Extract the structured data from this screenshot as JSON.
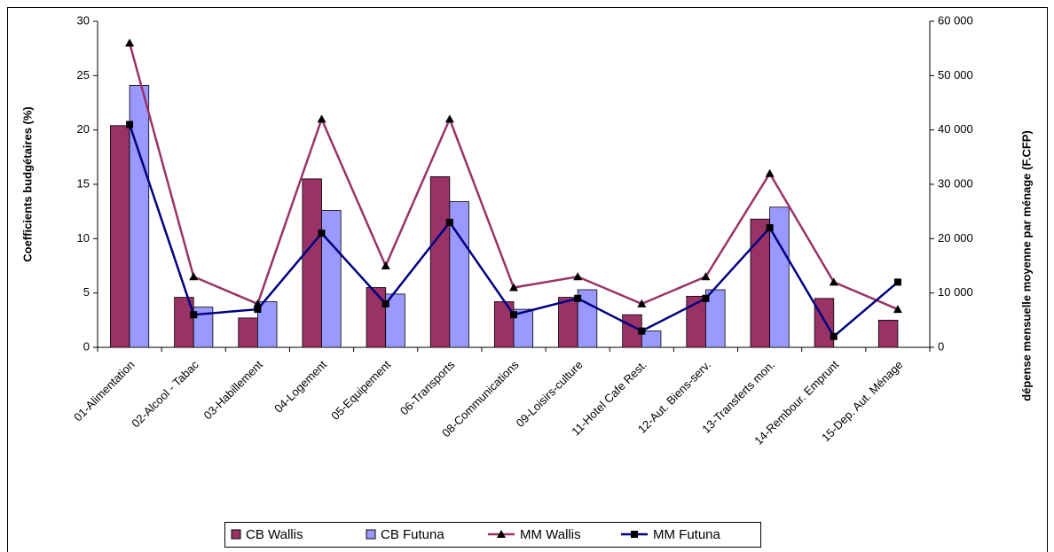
{
  "chart_data": {
    "type": "bar",
    "categories": [
      "01-Alimentation",
      "02-Alcool - Tabac",
      "03-Habillement",
      "04-Logement",
      "05-Equipement",
      "06-Transports",
      "08-Communications",
      "09-Loisirs-culture",
      "11-Hotel Cafe Rest.",
      "12-Aut. Biens-serv.",
      "13-Transferts mon.",
      "14-Rembour. Emprunt",
      "15-Dep. Aut. Ménage"
    ],
    "y_label": "Coefficients budgétaires (%)",
    "y2_label": "dépense mensuelle moyenne par ménage (F.CFP)",
    "ylim": [
      0,
      30
    ],
    "yticks": [
      0,
      5,
      10,
      15,
      20,
      25,
      30
    ],
    "y2lim": [
      0,
      60000
    ],
    "y2ticks": [
      0,
      {
        "value": 10000,
        "label": "10 000"
      },
      {
        "value": 20000,
        "label": "20 000"
      },
      {
        "value": 30000,
        "label": "30 000"
      },
      {
        "value": 40000,
        "label": "40 000"
      },
      {
        "value": 50000,
        "label": "50 000"
      },
      {
        "value": 60000,
        "label": "60 000"
      }
    ],
    "legend": "bottom",
    "series": [
      {
        "name": "CB Wallis",
        "type": "bar",
        "color": "#993366",
        "values": [
          20.4,
          4.6,
          2.7,
          15.5,
          5.5,
          15.7,
          4.2,
          4.6,
          3.0,
          4.7,
          11.8,
          4.5,
          2.5
        ]
      },
      {
        "name": "CB Futuna",
        "type": "bar",
        "color": "#9999ff",
        "values": [
          24.1,
          3.7,
          4.2,
          12.6,
          4.9,
          13.4,
          3.5,
          5.3,
          1.5,
          5.3,
          12.9,
          null,
          null
        ]
      },
      {
        "name": "MM Wallis",
        "type": "line",
        "axis": "y2",
        "color": "#993366",
        "marker": "triangle",
        "values": [
          56000,
          13000,
          8000,
          42000,
          15000,
          42000,
          11000,
          13000,
          8000,
          13000,
          32000,
          12000,
          7000
        ]
      },
      {
        "name": "MM Futuna",
        "type": "line",
        "axis": "y2",
        "color": "#000080",
        "marker": "square",
        "values": [
          41000,
          6000,
          7000,
          21000,
          8000,
          23000,
          6000,
          9000,
          3000,
          9000,
          22000,
          2000,
          12000
        ]
      }
    ]
  }
}
